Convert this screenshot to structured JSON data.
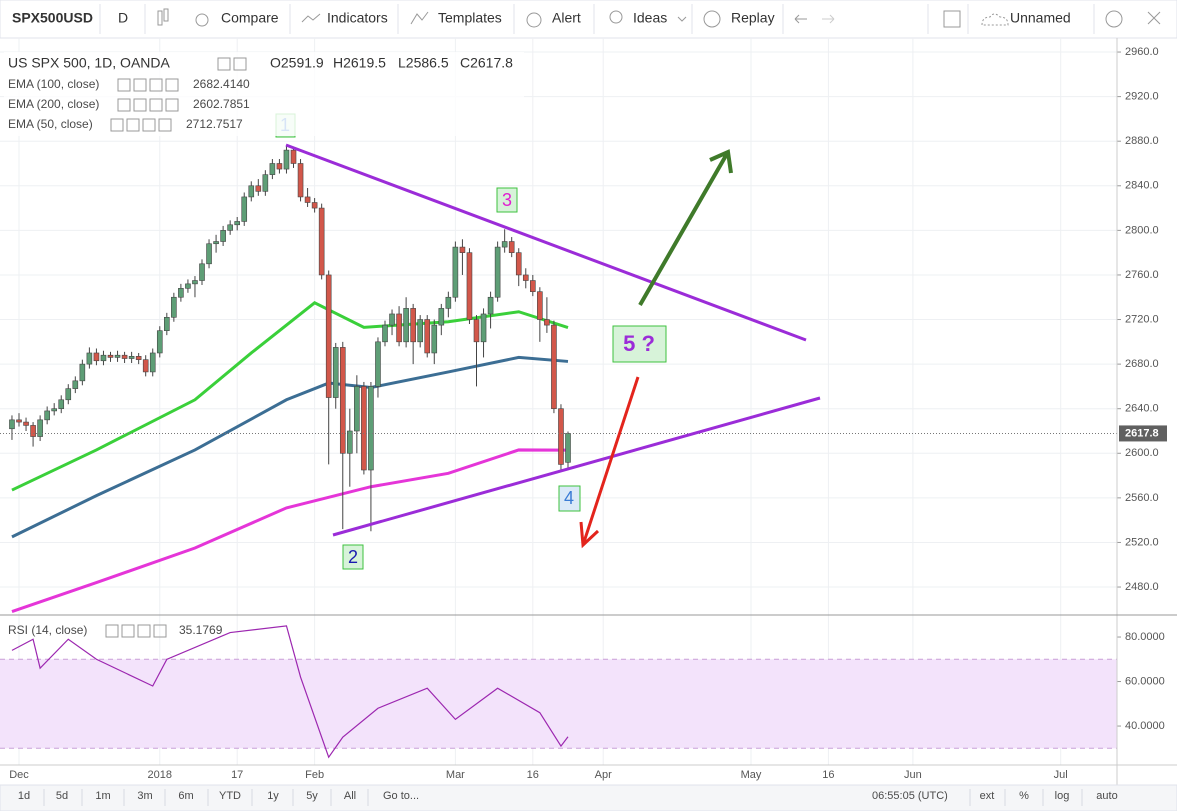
{
  "toolbar": {
    "symbol": "SPX500USD",
    "interval": "D",
    "buttons": [
      "Compare",
      "Indicators",
      "Templates",
      "Alert",
      "Ideas",
      "Replay"
    ],
    "layout_name": "Unnamed"
  },
  "chart_data": {
    "type": "candlestick",
    "title": "US SPX 500, 1D, OANDA",
    "ohlc_legend": [
      "O2591.9",
      "H2619.5",
      "L2586.5",
      "C2617.8"
    ],
    "color_up": "#5e9e76",
    "color_down": "#d2574a",
    "candles": [
      [
        2622,
        2634,
        2612,
        2630
      ],
      [
        2630,
        2636,
        2624,
        2628
      ],
      [
        2628,
        2632,
        2620,
        2625
      ],
      [
        2625,
        2628,
        2606,
        2615
      ],
      [
        2615,
        2634,
        2611,
        2630
      ],
      [
        2630,
        2642,
        2626,
        2638
      ],
      [
        2638,
        2645,
        2634,
        2640
      ],
      [
        2640,
        2652,
        2636,
        2648
      ],
      [
        2648,
        2662,
        2644,
        2658
      ],
      [
        2658,
        2669,
        2654,
        2665
      ],
      [
        2665,
        2684,
        2661,
        2680
      ],
      [
        2680,
        2695,
        2676,
        2690
      ],
      [
        2690,
        2694,
        2679,
        2683
      ],
      [
        2683,
        2692,
        2679,
        2688
      ],
      [
        2688,
        2691,
        2682,
        2686
      ],
      [
        2686,
        2692,
        2682,
        2688
      ],
      [
        2688,
        2691,
        2681,
        2685
      ],
      [
        2685,
        2691,
        2681,
        2687
      ],
      [
        2687,
        2690,
        2680,
        2684
      ],
      [
        2684,
        2688,
        2669,
        2673
      ],
      [
        2673,
        2694,
        2669,
        2690
      ],
      [
        2690,
        2714,
        2686,
        2710
      ],
      [
        2710,
        2726,
        2706,
        2722
      ],
      [
        2722,
        2744,
        2718,
        2740
      ],
      [
        2740,
        2752,
        2736,
        2748
      ],
      [
        2748,
        2756,
        2744,
        2752
      ],
      [
        2752,
        2759,
        2740,
        2755
      ],
      [
        2755,
        2774,
        2751,
        2770
      ],
      [
        2770,
        2792,
        2766,
        2788
      ],
      [
        2788,
        2796,
        2780,
        2790
      ],
      [
        2790,
        2804,
        2786,
        2800
      ],
      [
        2800,
        2809,
        2796,
        2805
      ],
      [
        2805,
        2812,
        2800,
        2808
      ],
      [
        2808,
        2834,
        2804,
        2830
      ],
      [
        2830,
        2844,
        2826,
        2840
      ],
      [
        2840,
        2846,
        2831,
        2835
      ],
      [
        2835,
        2854,
        2831,
        2850
      ],
      [
        2850,
        2864,
        2846,
        2860
      ],
      [
        2860,
        2864,
        2851,
        2855
      ],
      [
        2855,
        2876,
        2851,
        2872
      ],
      [
        2872,
        2875,
        2856,
        2860
      ],
      [
        2860,
        2864,
        2826,
        2830
      ],
      [
        2830,
        2838,
        2821,
        2825
      ],
      [
        2825,
        2829,
        2816,
        2820
      ],
      [
        2820,
        2824,
        2756,
        2760
      ],
      [
        2760,
        2764,
        2590,
        2650
      ],
      [
        2650,
        2699,
        2640,
        2695
      ],
      [
        2695,
        2700,
        2532,
        2600
      ],
      [
        2600,
        2640,
        2570,
        2620
      ],
      [
        2620,
        2670,
        2600,
        2660
      ],
      [
        2660,
        2664,
        2581,
        2585
      ],
      [
        2585,
        2664,
        2530,
        2660
      ],
      [
        2660,
        2704,
        2650,
        2700
      ],
      [
        2700,
        2719,
        2696,
        2715
      ],
      [
        2715,
        2729,
        2706,
        2725
      ],
      [
        2725,
        2732,
        2696,
        2700
      ],
      [
        2700,
        2740,
        2695,
        2730
      ],
      [
        2730,
        2734,
        2680,
        2700
      ],
      [
        2700,
        2724,
        2695,
        2720
      ],
      [
        2720,
        2724,
        2686,
        2690
      ],
      [
        2690,
        2720,
        2680,
        2715
      ],
      [
        2715,
        2734,
        2706,
        2730
      ],
      [
        2730,
        2745,
        2722,
        2740
      ],
      [
        2740,
        2790,
        2736,
        2785
      ],
      [
        2785,
        2792,
        2760,
        2780
      ],
      [
        2780,
        2784,
        2716,
        2720
      ],
      [
        2720,
        2724,
        2660,
        2700
      ],
      [
        2700,
        2730,
        2686,
        2725
      ],
      [
        2725,
        2745,
        2712,
        2740
      ],
      [
        2740,
        2790,
        2736,
        2785
      ],
      [
        2785,
        2801,
        2780,
        2790
      ],
      [
        2790,
        2794,
        2776,
        2780
      ],
      [
        2780,
        2784,
        2750,
        2760
      ],
      [
        2760,
        2766,
        2748,
        2755
      ],
      [
        2755,
        2760,
        2741,
        2745
      ],
      [
        2745,
        2749,
        2700,
        2720
      ],
      [
        2720,
        2740,
        2708,
        2715
      ],
      [
        2715,
        2719,
        2636,
        2640
      ],
      [
        2640,
        2644,
        2584,
        2590
      ],
      [
        2591.9,
        2619.5,
        2586.5,
        2617.8
      ]
    ],
    "last_price": 2617.8,
    "last_price_label": "2617.8",
    "indicators": [
      {
        "name": "EMA (100, close)",
        "value_label": "2682.4140",
        "color": "#3c6e94",
        "x": [
          0,
          12,
          26,
          39,
          45,
          51,
          62,
          72,
          79
        ],
        "values": [
          2525,
          2562,
          2603,
          2648,
          2663,
          2659,
          2673,
          2686,
          2682.4
        ]
      },
      {
        "name": "EMA (200, close)",
        "value_label": "2602.7851",
        "color": "#e535d8",
        "x": [
          0,
          12,
          26,
          39,
          51,
          62,
          72,
          79
        ],
        "values": [
          2458,
          2484,
          2515,
          2551,
          2570,
          2582,
          2603,
          2602.8
        ]
      },
      {
        "name": "EMA (50, close)",
        "value_label": "2712.7517",
        "color": "#3ad03a",
        "x": [
          0,
          12,
          26,
          34,
          43,
          50,
          62,
          72,
          79
        ],
        "values": [
          2567,
          2603,
          2648,
          2690,
          2735,
          2713,
          2718,
          2727,
          2712.8
        ]
      }
    ],
    "ylim": [
      2456.7,
      2970.8
    ],
    "yticks": [
      {
        "value": 2480,
        "label": "2480.0"
      },
      {
        "value": 2520,
        "label": "2520.0"
      },
      {
        "value": 2560,
        "label": "2560.0"
      },
      {
        "value": 2600,
        "label": "2600.0"
      },
      {
        "value": 2640,
        "label": "2640.0"
      },
      {
        "value": 2680,
        "label": "2680.0"
      },
      {
        "value": 2720,
        "label": "2720.0"
      },
      {
        "value": 2760,
        "label": "2760.0"
      },
      {
        "value": 2800,
        "label": "2800.0"
      },
      {
        "value": 2840,
        "label": "2840.0"
      },
      {
        "value": 2880,
        "label": "2880.0"
      },
      {
        "value": 2920,
        "label": "2920.0"
      },
      {
        "value": 2960,
        "label": "2960.0"
      }
    ],
    "xlim": [
      -1.7,
      157
    ],
    "xticks": [
      {
        "value": 1,
        "label": "Dec"
      },
      {
        "value": 21,
        "label": "2018"
      },
      {
        "value": 32,
        "label": "17"
      },
      {
        "value": 43,
        "label": "Feb"
      },
      {
        "value": 63,
        "label": "Mar"
      },
      {
        "value": 74,
        "label": "16"
      },
      {
        "value": 84,
        "label": "Apr"
      },
      {
        "value": 105,
        "label": "May"
      },
      {
        "value": 116,
        "label": "16"
      },
      {
        "value": 128,
        "label": "Jun"
      },
      {
        "value": 149,
        "label": "Jul"
      }
    ],
    "annotations": [
      "1",
      "2",
      "3",
      "4",
      "5 ?"
    ]
  },
  "rsi": {
    "name": "RSI (14, close)",
    "value_label": "35.1769",
    "color": "#9c27b0",
    "x": [
      0,
      3,
      4,
      8,
      12,
      20,
      22,
      31,
      39,
      41,
      45,
      47,
      52,
      59,
      63,
      69,
      75,
      78,
      79
    ],
    "values": [
      74,
      79,
      66,
      79,
      70,
      58,
      70,
      82,
      85,
      62,
      26,
      35,
      48,
      57,
      43,
      57,
      46,
      31,
      35.2
    ],
    "ylim": [
      22.5,
      89
    ],
    "band": [
      30,
      70
    ],
    "yticks": [
      {
        "value": 40,
        "label": "40.0000"
      },
      {
        "value": 60,
        "label": "60.0000"
      },
      {
        "value": 80,
        "label": "80.0000"
      }
    ]
  },
  "bottom_bar": {
    "ranges": [
      "1d",
      "5d",
      "1m",
      "3m",
      "6m",
      "YTD",
      "1y",
      "5y",
      "All"
    ],
    "goto": "Go to...",
    "clock": "06:55:05 (UTC)",
    "options": [
      "ext",
      "%",
      "log",
      "auto"
    ]
  }
}
